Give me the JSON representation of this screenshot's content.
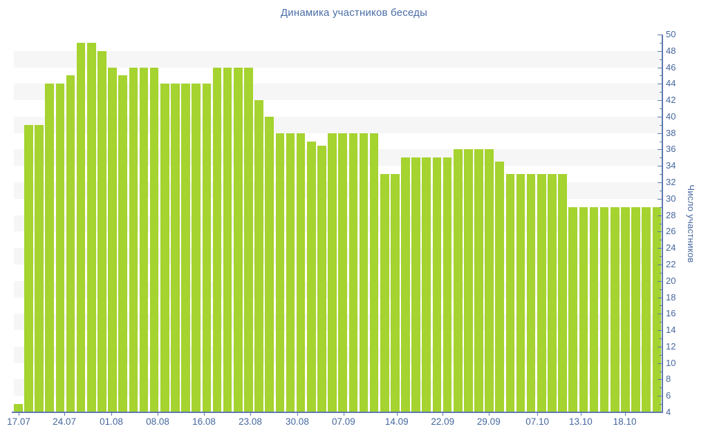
{
  "title": "Динамика участников беседы",
  "chart_data": {
    "type": "bar",
    "title": "Динамика участников беседы",
    "ylabel": "Число участников",
    "xlabel": "",
    "ylim": [
      4,
      50
    ],
    "y_major_step": 2,
    "y_minor_step": 1,
    "grid": "alternating horizontal bands",
    "legend": "none",
    "y_axis_side": "right",
    "bar_color": "#a5d32f",
    "band_color": "#f6f6f6",
    "axis_color": "#5d79ad",
    "label_color": "#44669e",
    "title_color": "#4a6da7",
    "band_start_values": [
      6,
      10,
      14,
      18,
      22,
      26,
      30,
      34,
      38,
      42,
      46
    ],
    "values": [
      5,
      39,
      39,
      44,
      44,
      45,
      49,
      49,
      48,
      46,
      45,
      46,
      46,
      46,
      44,
      44,
      44,
      44,
      44,
      46,
      46,
      46,
      46,
      42,
      40,
      38,
      38,
      38,
      37,
      36.5,
      38,
      38,
      38,
      38,
      38,
      33,
      33,
      35,
      35,
      35,
      35,
      35,
      36,
      36,
      36,
      36,
      34.5,
      33,
      33,
      33,
      33,
      33,
      33,
      29,
      29,
      29,
      29,
      29,
      29,
      29,
      29,
      29
    ],
    "x_tick_labels": [
      "17.07",
      "24.07",
      "01.08",
      "08.08",
      "16.08",
      "23.08",
      "30.08",
      "07.09",
      "14.09",
      "22.09",
      "29.09",
      "07.10",
      "13.10",
      "18.10"
    ],
    "x_tick_positions": [
      0.0075,
      0.078,
      0.1505,
      0.222,
      0.2935,
      0.365,
      0.4375,
      0.509,
      0.591,
      0.662,
      0.733,
      0.808,
      0.875,
      0.943
    ]
  }
}
